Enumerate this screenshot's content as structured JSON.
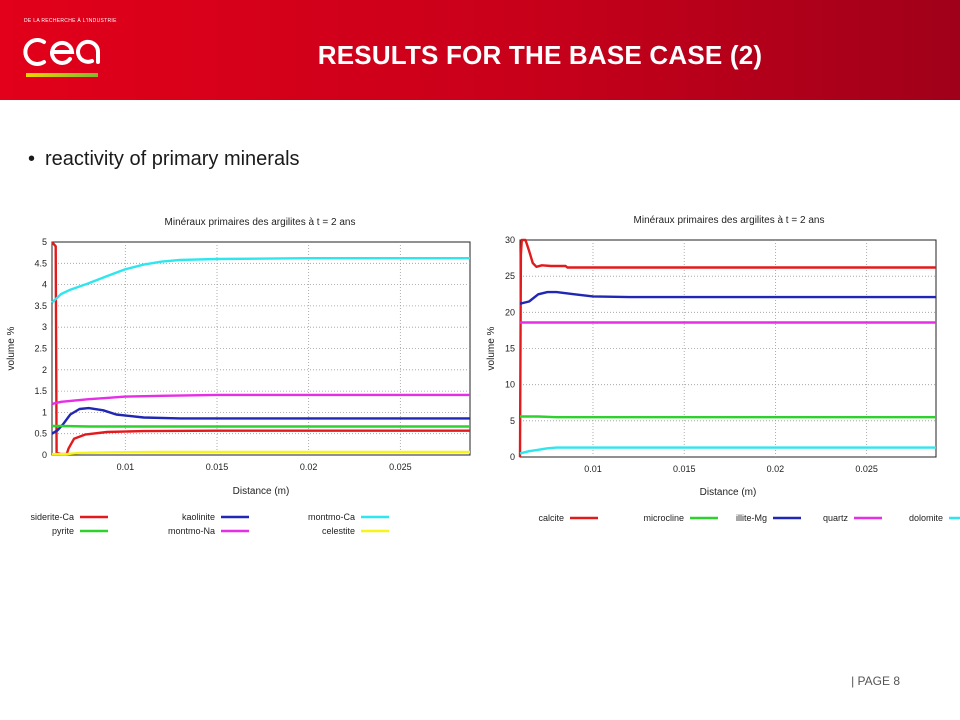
{
  "header": {
    "logo_small_text": "DE LA RECHERCHE À L'INDUSTRIE",
    "title": "RESULTS FOR THE BASE CASE (2)"
  },
  "bullet": {
    "text": "reactivity of primary minerals"
  },
  "footer": {
    "page_label": "| PAGE 8"
  },
  "colors": {
    "brand_red": "#e2001a",
    "logo_gradient": [
      "#f3d400",
      "#7dbb2e"
    ]
  },
  "chart_data": [
    {
      "type": "line",
      "title": "Minéraux primaires des argilites à t = 2 ans",
      "xlabel": "Distance (m)",
      "ylabel": "volume %",
      "xlim": [
        0.006,
        0.0288
      ],
      "ylim": [
        0,
        5
      ],
      "xticks": [
        0.01,
        0.015,
        0.02,
        0.025
      ],
      "xtick_labels": [
        "0.01",
        "0.015",
        "0.02",
        "0.025"
      ],
      "yticks": [
        0,
        0.5,
        1,
        1.5,
        2,
        2.5,
        3,
        3.5,
        4,
        4.5,
        5
      ],
      "ytick_labels": [
        "0",
        "0.5",
        "1",
        "1.5",
        "2",
        "2.5",
        "3",
        "3.5",
        "4",
        "4.5",
        "5"
      ],
      "grid": true,
      "legend_position": "bottom",
      "series": [
        {
          "name": "siderite-Ca",
          "color": "#e31a1c",
          "x": [
            0.006,
            0.0062,
            0.00625,
            0.0065,
            0.0068,
            0.0069,
            0.0072,
            0.0078,
            0.009,
            0.011,
            0.015,
            0.02,
            0.0288
          ],
          "y": [
            5,
            4.9,
            0.05,
            0.02,
            0.02,
            0.15,
            0.38,
            0.48,
            0.54,
            0.56,
            0.57,
            0.57,
            0.57
          ]
        },
        {
          "name": "kaolinite",
          "color": "#1f27b4",
          "x": [
            0.006,
            0.0063,
            0.0066,
            0.007,
            0.0075,
            0.008,
            0.0088,
            0.0095,
            0.011,
            0.013,
            0.015,
            0.02,
            0.0288
          ],
          "y": [
            0.5,
            0.58,
            0.72,
            0.95,
            1.08,
            1.1,
            1.05,
            0.95,
            0.88,
            0.86,
            0.86,
            0.86,
            0.86
          ]
        },
        {
          "name": "montmo-Ca",
          "color": "#2ee6ee",
          "x": [
            0.006,
            0.0065,
            0.007,
            0.008,
            0.009,
            0.01,
            0.011,
            0.012,
            0.013,
            0.015,
            0.02,
            0.025,
            0.0288
          ],
          "y": [
            3.58,
            3.78,
            3.88,
            4.03,
            4.2,
            4.36,
            4.47,
            4.54,
            4.58,
            4.6,
            4.62,
            4.62,
            4.62
          ]
        },
        {
          "name": "pyrite",
          "color": "#2ed12e",
          "x": [
            0.006,
            0.0065,
            0.008,
            0.01,
            0.015,
            0.02,
            0.0288
          ],
          "y": [
            0.68,
            0.68,
            0.67,
            0.67,
            0.67,
            0.67,
            0.67
          ]
        },
        {
          "name": "montmo-Na",
          "color": "#e62ee6",
          "x": [
            0.006,
            0.0065,
            0.007,
            0.008,
            0.009,
            0.01,
            0.012,
            0.015,
            0.02,
            0.0288
          ],
          "y": [
            1.2,
            1.25,
            1.27,
            1.31,
            1.34,
            1.37,
            1.39,
            1.41,
            1.41,
            1.41
          ]
        },
        {
          "name": "celestite",
          "color": "#f5f51a",
          "x": [
            0.006,
            0.0068,
            0.0075,
            0.009,
            0.012,
            0.015,
            0.02,
            0.0288
          ],
          "y": [
            0.02,
            0.02,
            0.05,
            0.06,
            0.07,
            0.07,
            0.07,
            0.07
          ]
        }
      ]
    },
    {
      "type": "line",
      "title": "Minéraux primaires des argilites à t = 2 ans",
      "xlabel": "Distance (m)",
      "ylabel": "volume %",
      "xlim": [
        0.006,
        0.0288
      ],
      "ylim": [
        0,
        30
      ],
      "xticks": [
        0.01,
        0.015,
        0.02,
        0.025
      ],
      "xtick_labels": [
        "0.01",
        "0.015",
        "0.02",
        "0.025"
      ],
      "yticks": [
        0,
        5,
        10,
        15,
        20,
        25,
        30
      ],
      "ytick_labels": [
        "0",
        "5",
        "10",
        "15",
        "20",
        "25",
        "30"
      ],
      "grid": true,
      "legend_position": "bottom",
      "series": [
        {
          "name": "calcite",
          "color": "#e31a1c",
          "x": [
            0.006,
            0.00605,
            0.0061,
            0.0063,
            0.0065,
            0.0067,
            0.0069,
            0.0072,
            0.0077,
            0.0085,
            0.0086,
            0.01,
            0.015,
            0.0288
          ],
          "y": [
            0,
            28,
            30,
            30,
            28.5,
            26.8,
            26.3,
            26.5,
            26.4,
            26.4,
            26.2,
            26.2,
            26.2,
            26.2
          ]
        },
        {
          "name": "microcline",
          "color": "#2ed12e",
          "x": [
            0.006,
            0.007,
            0.008,
            0.01,
            0.015,
            0.0288
          ],
          "y": [
            5.6,
            5.6,
            5.5,
            5.5,
            5.5,
            5.5
          ]
        },
        {
          "name": "illite-Mg",
          "color": "#1f27b4",
          "x": [
            0.006,
            0.0065,
            0.007,
            0.0075,
            0.008,
            0.009,
            0.01,
            0.012,
            0.015,
            0.02,
            0.0288
          ],
          "y": [
            21.2,
            21.5,
            22.5,
            22.8,
            22.8,
            22.5,
            22.2,
            22.1,
            22.1,
            22.1,
            22.1
          ]
        },
        {
          "name": "quartz",
          "color": "#e62ee6",
          "x": [
            0.006,
            0.008,
            0.01,
            0.015,
            0.0288
          ],
          "y": [
            18.6,
            18.6,
            18.6,
            18.6,
            18.6
          ]
        },
        {
          "name": "dolomite",
          "color": "#2ee6ee",
          "x": [
            0.006,
            0.0065,
            0.007,
            0.0075,
            0.008,
            0.009,
            0.01,
            0.015,
            0.0288
          ],
          "y": [
            0.5,
            0.8,
            1.0,
            1.2,
            1.3,
            1.3,
            1.3,
            1.3,
            1.3
          ]
        }
      ]
    }
  ]
}
